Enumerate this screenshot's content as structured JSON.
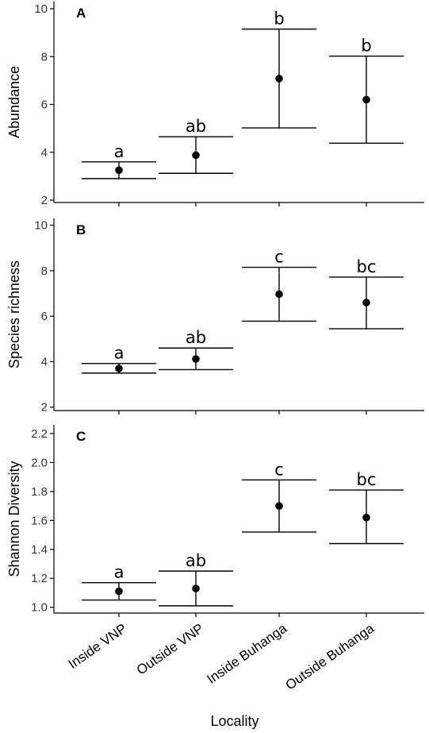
{
  "chart_data": [
    {
      "type": "scatter",
      "panel": "A",
      "ylabel": "Abundance",
      "ylim": [
        1.9,
        10.3
      ],
      "yticks": [
        2,
        4,
        6,
        8,
        10
      ],
      "categories": [
        "Inside VNP",
        "Outside VNP",
        "Inside Buhanga",
        "Outside Buhanga"
      ],
      "points": [
        {
          "mean": 3.25,
          "lower": 2.9,
          "upper": 3.6,
          "group": "a"
        },
        {
          "mean": 3.88,
          "lower": 3.12,
          "upper": 4.65,
          "group": "ab"
        },
        {
          "mean": 7.08,
          "lower": 5.02,
          "upper": 9.15,
          "group": "b"
        },
        {
          "mean": 6.2,
          "lower": 4.38,
          "upper": 8.02,
          "group": "b"
        }
      ]
    },
    {
      "type": "scatter",
      "panel": "B",
      "ylabel": "Species richness",
      "ylim": [
        1.85,
        10.3
      ],
      "yticks": [
        2,
        4,
        6,
        8,
        10
      ],
      "categories": [
        "Inside VNP",
        "Outside VNP",
        "Inside Buhanga",
        "Outside Buhanga"
      ],
      "points": [
        {
          "mean": 3.7,
          "lower": 3.5,
          "upper": 3.92,
          "group": "a"
        },
        {
          "mean": 4.12,
          "lower": 3.65,
          "upper": 4.6,
          "group": "ab"
        },
        {
          "mean": 6.97,
          "lower": 5.78,
          "upper": 8.15,
          "group": "c"
        },
        {
          "mean": 6.6,
          "lower": 5.45,
          "upper": 7.72,
          "group": "bc"
        }
      ]
    },
    {
      "type": "scatter",
      "panel": "C",
      "ylabel": "Shannon Diversity",
      "ylim": [
        0.96,
        2.26
      ],
      "yticks": [
        1.0,
        1.2,
        1.4,
        1.6,
        1.8,
        2.0,
        2.2
      ],
      "categories": [
        "Inside VNP",
        "Outside VNP",
        "Inside Buhanga",
        "Outside Buhanga"
      ],
      "points": [
        {
          "mean": 1.11,
          "lower": 1.05,
          "upper": 1.17,
          "group": "a"
        },
        {
          "mean": 1.13,
          "lower": 1.01,
          "upper": 1.25,
          "group": "ab"
        },
        {
          "mean": 1.7,
          "lower": 1.52,
          "upper": 1.88,
          "group": "c"
        },
        {
          "mean": 1.62,
          "lower": 1.44,
          "upper": 1.81,
          "group": "bc"
        }
      ]
    }
  ],
  "xlabel": "Locality",
  "style": {
    "mark_color": "#000000",
    "axis_color": "#000000",
    "tick_label_color": "#333333",
    "background": "#ffffff"
  }
}
